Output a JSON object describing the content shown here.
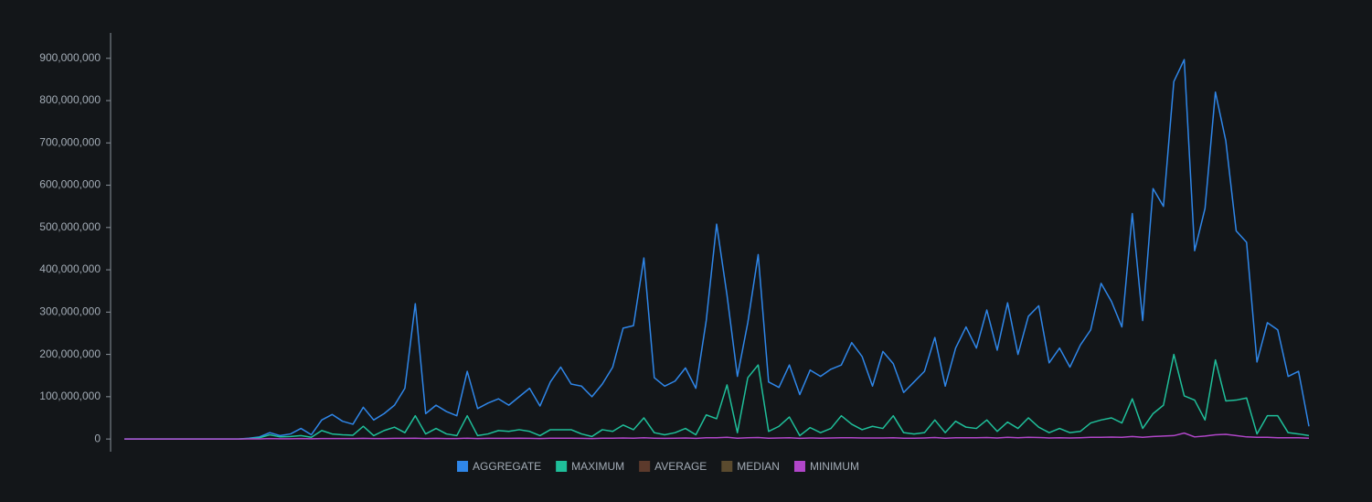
{
  "chart_data": {
    "type": "line",
    "ylim": [
      -30000000,
      960000000
    ],
    "yticks": [
      0,
      {
        "value": 100000000,
        "label": "100,000,000"
      },
      {
        "value": 200000000,
        "label": "200,000,000"
      },
      {
        "value": 300000000,
        "label": "300,000,000"
      },
      {
        "value": 400000000,
        "label": "400,000,000"
      },
      {
        "value": 500000000,
        "label": "500,000,000"
      },
      {
        "value": 600000000,
        "label": "600,000,000"
      },
      {
        "value": 700000000,
        "label": "700,000,000"
      },
      {
        "value": 800000000,
        "label": "800,000,000"
      },
      {
        "value": 900000000,
        "label": "900,000,000"
      }
    ],
    "grid": false,
    "legend": "bottom",
    "series": [
      {
        "name": "AGGREGATE",
        "color": "#2f86e8",
        "visible": true,
        "values": [
          0,
          0,
          0,
          0,
          0,
          0,
          0,
          0,
          0,
          0,
          0,
          0,
          2000000,
          5000000,
          15000000,
          8000000,
          12000000,
          25000000,
          10000000,
          45000000,
          58000000,
          42000000,
          35000000,
          75000000,
          45000000,
          60000000,
          80000000,
          120000000,
          320000000,
          60000000,
          80000000,
          65000000,
          55000000,
          160000000,
          72000000,
          85000000,
          95000000,
          80000000,
          100000000,
          120000000,
          78000000,
          135000000,
          170000000,
          130000000,
          125000000,
          100000000,
          130000000,
          170000000,
          262000000,
          268000000,
          428000000,
          145000000,
          125000000,
          137000000,
          168000000,
          120000000,
          280000000,
          508000000,
          340000000,
          148000000,
          275000000,
          436000000,
          135000000,
          122000000,
          175000000,
          105000000,
          163000000,
          148000000,
          165000000,
          175000000,
          228000000,
          195000000,
          125000000,
          207000000,
          178000000,
          110000000,
          135000000,
          160000000,
          240000000,
          125000000,
          215000000,
          265000000,
          215000000,
          305000000,
          210000000,
          322000000,
          200000000,
          290000000,
          315000000,
          180000000,
          215000000,
          170000000,
          222000000,
          258000000,
          368000000,
          325000000,
          265000000,
          533000000,
          280000000,
          592000000,
          550000000,
          845000000,
          897000000,
          445000000,
          545000000,
          820000000,
          705000000,
          492000000,
          465000000,
          182000000,
          275000000,
          258000000,
          148000000,
          160000000,
          30000000
        ]
      },
      {
        "name": "MAXIMUM",
        "color": "#1fbf9a",
        "visible": true,
        "values": [
          0,
          0,
          0,
          0,
          0,
          0,
          0,
          0,
          0,
          0,
          0,
          0,
          1000000,
          3000000,
          10000000,
          5000000,
          6000000,
          8000000,
          4000000,
          20000000,
          12000000,
          10000000,
          9000000,
          30000000,
          8000000,
          20000000,
          28000000,
          15000000,
          55000000,
          12000000,
          25000000,
          12000000,
          8000000,
          55000000,
          8000000,
          12000000,
          20000000,
          18000000,
          22000000,
          18000000,
          8000000,
          22000000,
          22000000,
          22000000,
          12000000,
          6000000,
          22000000,
          18000000,
          33000000,
          22000000,
          50000000,
          15000000,
          10000000,
          15000000,
          25000000,
          10000000,
          57000000,
          48000000,
          128000000,
          15000000,
          145000000,
          175000000,
          18000000,
          30000000,
          52000000,
          8000000,
          27000000,
          15000000,
          25000000,
          55000000,
          35000000,
          22000000,
          30000000,
          25000000,
          55000000,
          15000000,
          12000000,
          15000000,
          45000000,
          15000000,
          42000000,
          28000000,
          25000000,
          45000000,
          18000000,
          40000000,
          25000000,
          50000000,
          28000000,
          15000000,
          25000000,
          15000000,
          18000000,
          38000000,
          45000000,
          50000000,
          38000000,
          95000000,
          25000000,
          60000000,
          80000000,
          200000000,
          102000000,
          92000000,
          45000000,
          187000000,
          90000000,
          92000000,
          97000000,
          12000000,
          55000000,
          55000000,
          15000000,
          12000000,
          8000000
        ]
      },
      {
        "name": "AVERAGE",
        "color": "#5c3a2c",
        "visible": false
      },
      {
        "name": "MEDIAN",
        "color": "#5a4a2e",
        "visible": false
      },
      {
        "name": "MINIMUM",
        "color": "#b146c9",
        "visible": true,
        "values": [
          0,
          0,
          0,
          0,
          0,
          0,
          0,
          0,
          0,
          0,
          0,
          0,
          200000,
          300000,
          1000000,
          500000,
          500000,
          1000000,
          500000,
          1000000,
          1000000,
          1000000,
          1000000,
          1500000,
          1000000,
          1000000,
          1500000,
          1500000,
          2000000,
          1000000,
          1500000,
          1000000,
          1000000,
          2000000,
          1000000,
          1500000,
          1500000,
          1500000,
          2000000,
          1500000,
          1000000,
          2000000,
          2000000,
          2000000,
          1500000,
          1000000,
          2000000,
          2000000,
          2500000,
          2000000,
          3000000,
          2000000,
          1500000,
          2000000,
          2500000,
          1500000,
          3000000,
          3000000,
          4000000,
          2000000,
          3000000,
          3500000,
          2000000,
          2500000,
          3000000,
          1500000,
          2500000,
          2000000,
          2500000,
          3000000,
          3000000,
          2500000,
          2500000,
          2500000,
          3000000,
          2000000,
          2000000,
          2500000,
          3500000,
          2000000,
          3000000,
          3000000,
          3000000,
          3500000,
          2500000,
          4000000,
          3000000,
          4000000,
          3500000,
          2500000,
          3000000,
          2500000,
          3000000,
          4000000,
          4000000,
          4500000,
          4000000,
          6000000,
          4000000,
          6000000,
          7000000,
          8000000,
          14000000,
          5000000,
          7000000,
          10000000,
          11000000,
          8000000,
          5000000,
          4000000,
          4000000,
          3000000,
          3000000,
          3000000,
          2000000
        ]
      }
    ]
  }
}
